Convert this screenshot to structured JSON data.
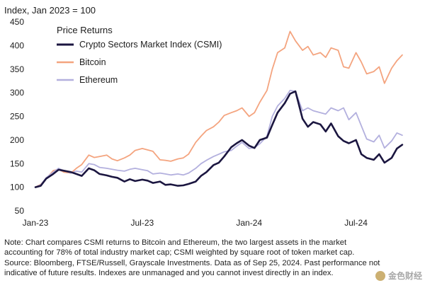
{
  "chart_data": {
    "type": "line",
    "title": "Index, Jan 2023 = 100",
    "legend_title": "Price Returns",
    "legend_position": "top-left",
    "grid": false,
    "xlabel": "",
    "ylabel": "",
    "ylim": [
      50,
      450
    ],
    "yticks": [
      50,
      100,
      150,
      200,
      250,
      300,
      350,
      400,
      450
    ],
    "xlim": [
      0,
      21
    ],
    "xticks": [
      {
        "x": 0,
        "label": "Jan-23"
      },
      {
        "x": 6,
        "label": "Jul-23"
      },
      {
        "x": 12,
        "label": "Jan-24"
      },
      {
        "x": 18,
        "label": "Jul-24"
      }
    ],
    "x_unit": "months since Jan 2023",
    "series": [
      {
        "name": "Crypto Sectors Market Index (CSMI)",
        "color": "#1b1640",
        "width": 2.6,
        "points": [
          [
            0,
            100
          ],
          [
            0.3,
            103
          ],
          [
            0.6,
            118
          ],
          [
            1,
            128
          ],
          [
            1.3,
            137
          ],
          [
            1.6,
            135
          ],
          [
            2,
            132
          ],
          [
            2.3,
            128
          ],
          [
            2.6,
            124
          ],
          [
            3,
            140
          ],
          [
            3.3,
            136
          ],
          [
            3.6,
            128
          ],
          [
            4,
            125
          ],
          [
            4.3,
            122
          ],
          [
            4.6,
            120
          ],
          [
            5,
            112
          ],
          [
            5.3,
            117
          ],
          [
            5.6,
            113
          ],
          [
            6,
            116
          ],
          [
            6.3,
            114
          ],
          [
            6.6,
            109
          ],
          [
            7,
            112
          ],
          [
            7.3,
            105
          ],
          [
            7.6,
            106
          ],
          [
            8,
            103
          ],
          [
            8.3,
            104
          ],
          [
            8.6,
            107
          ],
          [
            9,
            112
          ],
          [
            9.3,
            124
          ],
          [
            9.6,
            132
          ],
          [
            10,
            147
          ],
          [
            10.3,
            152
          ],
          [
            10.6,
            165
          ],
          [
            11,
            185
          ],
          [
            11.3,
            193
          ],
          [
            11.6,
            200
          ],
          [
            12,
            188
          ],
          [
            12.3,
            183
          ],
          [
            12.6,
            200
          ],
          [
            13,
            205
          ],
          [
            13.3,
            232
          ],
          [
            13.6,
            258
          ],
          [
            14,
            278
          ],
          [
            14.3,
            298
          ],
          [
            14.6,
            303
          ],
          [
            15,
            245
          ],
          [
            15.3,
            228
          ],
          [
            15.6,
            238
          ],
          [
            16,
            233
          ],
          [
            16.3,
            218
          ],
          [
            16.6,
            235
          ],
          [
            17,
            208
          ],
          [
            17.3,
            198
          ],
          [
            17.6,
            193
          ],
          [
            18,
            200
          ],
          [
            18.3,
            170
          ],
          [
            18.6,
            162
          ],
          [
            19,
            158
          ],
          [
            19.3,
            170
          ],
          [
            19.6,
            152
          ],
          [
            20,
            162
          ],
          [
            20.3,
            182
          ],
          [
            20.6,
            190
          ]
        ]
      },
      {
        "name": "Bitcoin",
        "color": "#f4a47f",
        "width": 1.8,
        "points": [
          [
            0,
            100
          ],
          [
            0.3,
            106
          ],
          [
            0.6,
            118
          ],
          [
            1,
            135
          ],
          [
            1.3,
            138
          ],
          [
            1.6,
            132
          ],
          [
            2,
            130
          ],
          [
            2.3,
            140
          ],
          [
            2.6,
            148
          ],
          [
            3,
            168
          ],
          [
            3.3,
            163
          ],
          [
            3.6,
            165
          ],
          [
            4,
            168
          ],
          [
            4.3,
            160
          ],
          [
            4.6,
            156
          ],
          [
            5,
            162
          ],
          [
            5.3,
            168
          ],
          [
            5.6,
            178
          ],
          [
            6,
            182
          ],
          [
            6.3,
            179
          ],
          [
            6.6,
            176
          ],
          [
            7,
            158
          ],
          [
            7.3,
            157
          ],
          [
            7.6,
            155
          ],
          [
            8,
            160
          ],
          [
            8.3,
            162
          ],
          [
            8.6,
            170
          ],
          [
            9,
            195
          ],
          [
            9.3,
            208
          ],
          [
            9.6,
            220
          ],
          [
            10,
            228
          ],
          [
            10.3,
            238
          ],
          [
            10.6,
            252
          ],
          [
            11,
            258
          ],
          [
            11.3,
            262
          ],
          [
            11.6,
            268
          ],
          [
            12,
            250
          ],
          [
            12.3,
            258
          ],
          [
            12.6,
            280
          ],
          [
            13,
            305
          ],
          [
            13.3,
            350
          ],
          [
            13.6,
            385
          ],
          [
            14,
            395
          ],
          [
            14.3,
            430
          ],
          [
            14.6,
            410
          ],
          [
            15,
            390
          ],
          [
            15.3,
            398
          ],
          [
            15.6,
            380
          ],
          [
            16,
            385
          ],
          [
            16.3,
            375
          ],
          [
            16.6,
            395
          ],
          [
            17,
            390
          ],
          [
            17.3,
            355
          ],
          [
            17.6,
            352
          ],
          [
            18,
            385
          ],
          [
            18.3,
            365
          ],
          [
            18.6,
            340
          ],
          [
            19,
            345
          ],
          [
            19.3,
            355
          ],
          [
            19.6,
            320
          ],
          [
            20,
            352
          ],
          [
            20.3,
            368
          ],
          [
            20.6,
            380
          ]
        ]
      },
      {
        "name": "Ethereum",
        "color": "#b3b0de",
        "width": 1.8,
        "points": [
          [
            0,
            100
          ],
          [
            0.3,
            105
          ],
          [
            0.6,
            120
          ],
          [
            1,
            132
          ],
          [
            1.3,
            140
          ],
          [
            1.6,
            135
          ],
          [
            2,
            130
          ],
          [
            2.3,
            134
          ],
          [
            2.6,
            132
          ],
          [
            3,
            150
          ],
          [
            3.3,
            148
          ],
          [
            3.6,
            142
          ],
          [
            4,
            140
          ],
          [
            4.3,
            138
          ],
          [
            4.6,
            136
          ],
          [
            5,
            134
          ],
          [
            5.3,
            138
          ],
          [
            5.6,
            140
          ],
          [
            6,
            137
          ],
          [
            6.3,
            135
          ],
          [
            6.6,
            128
          ],
          [
            7,
            130
          ],
          [
            7.3,
            128
          ],
          [
            7.6,
            126
          ],
          [
            8,
            128
          ],
          [
            8.3,
            126
          ],
          [
            8.6,
            130
          ],
          [
            9,
            140
          ],
          [
            9.3,
            150
          ],
          [
            9.6,
            157
          ],
          [
            10,
            165
          ],
          [
            10.3,
            170
          ],
          [
            10.6,
            175
          ],
          [
            11,
            178
          ],
          [
            11.3,
            187
          ],
          [
            11.6,
            195
          ],
          [
            12,
            182
          ],
          [
            12.3,
            184
          ],
          [
            12.6,
            192
          ],
          [
            13,
            208
          ],
          [
            13.3,
            250
          ],
          [
            13.6,
            272
          ],
          [
            14,
            288
          ],
          [
            14.3,
            305
          ],
          [
            14.6,
            303
          ],
          [
            15,
            262
          ],
          [
            15.3,
            268
          ],
          [
            15.6,
            262
          ],
          [
            16,
            258
          ],
          [
            16.3,
            255
          ],
          [
            16.6,
            268
          ],
          [
            17,
            262
          ],
          [
            17.3,
            268
          ],
          [
            17.6,
            243
          ],
          [
            18,
            258
          ],
          [
            18.3,
            230
          ],
          [
            18.6,
            202
          ],
          [
            19,
            196
          ],
          [
            19.3,
            210
          ],
          [
            19.6,
            183
          ],
          [
            20,
            198
          ],
          [
            20.3,
            215
          ],
          [
            20.6,
            210
          ]
        ]
      }
    ]
  },
  "note": {
    "lines": [
      "Note: Chart compares CSMI returns to Bitcoin and Ethereum, the two largest assets in the market",
      "accounting for 78% of total industry market cap; CSMI weighted by square root of token market cap.",
      "Source: Bloomberg, FTSE/Russell, Grayscale Investments. Data as of Sep 25, 2024. Past performance not",
      "indicative of future results. Indexes are unmanaged and you cannot invest directly in an index."
    ]
  },
  "watermark": {
    "text": "金色财经"
  }
}
